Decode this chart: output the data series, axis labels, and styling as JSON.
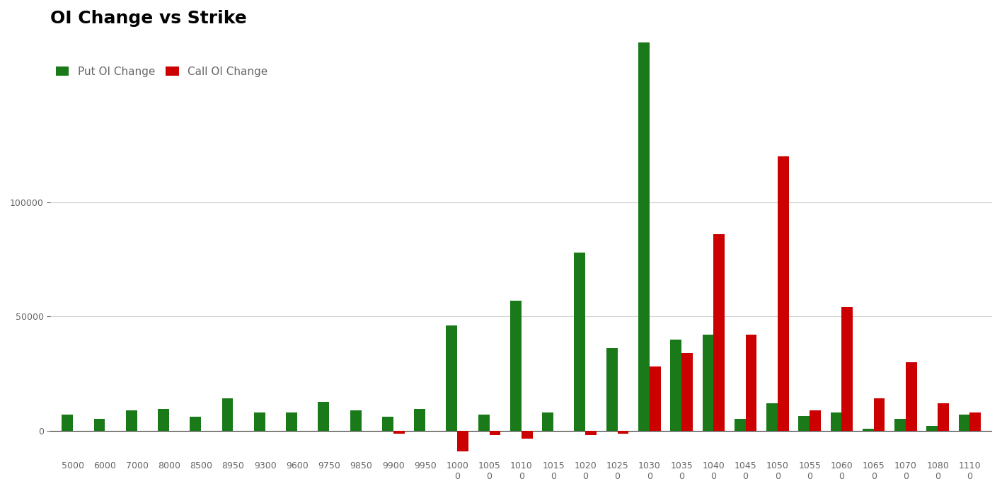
{
  "title": "OI Change vs Strike",
  "put_label": "Put OI Change",
  "call_label": "Call OI Change",
  "put_color": "#1a7a1a",
  "call_color": "#cc0000",
  "bg_color": "#ffffff",
  "grid_color": "#d0d0d0",
  "text_color": "#666666",
  "strikes": [
    "5000",
    "6000",
    "7000",
    "8000",
    "8500",
    "8950",
    "9300",
    "9600",
    "9750",
    "9850",
    "9900",
    "9950",
    "10000",
    "10050",
    "10100",
    "10150",
    "10200",
    "10250",
    "10300",
    "10350",
    "10400",
    "10450",
    "10500",
    "10550",
    "10600",
    "10650",
    "10700",
    "10800",
    "11100"
  ],
  "put_oi": [
    7000,
    5000,
    9000,
    9500,
    6000,
    14000,
    8000,
    8000,
    12500,
    9000,
    6000,
    9500,
    46000,
    7000,
    57000,
    8000,
    78000,
    36000,
    170000,
    40000,
    42000,
    5000,
    12000,
    6500,
    8000,
    800,
    5000,
    2000,
    7000
  ],
  "call_oi": [
    0,
    0,
    0,
    0,
    0,
    0,
    0,
    0,
    0,
    0,
    -1500,
    0,
    -9000,
    -2000,
    -3500,
    0,
    -2000,
    -1500,
    28000,
    34000,
    86000,
    42000,
    120000,
    9000,
    54000,
    14000,
    30000,
    12000,
    8000
  ],
  "ylim_min": -12000,
  "ylim_max": 175000,
  "yticks": [
    0,
    50000,
    100000
  ],
  "title_fontsize": 18,
  "legend_fontsize": 11,
  "tick_fontsize": 9,
  "bar_width": 0.35
}
